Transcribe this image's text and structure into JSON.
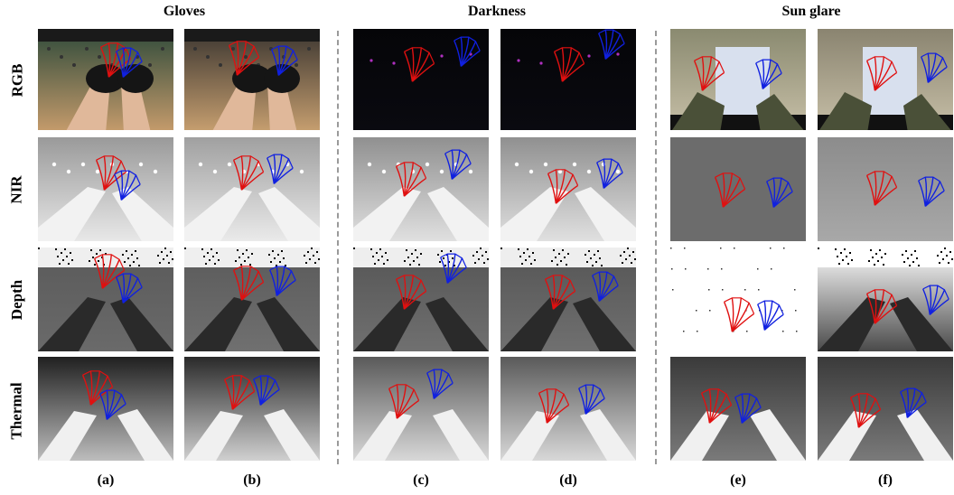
{
  "groups": [
    "Gloves",
    "Darkness",
    "Sun glare"
  ],
  "rows": [
    "RGB",
    "NIR",
    "Depth",
    "Thermal"
  ],
  "columns": [
    "(a)",
    "(b)",
    "(c)",
    "(d)",
    "(e)",
    "(f)"
  ],
  "condition_per_column": [
    "Gloves",
    "Gloves",
    "Darkness",
    "Darkness",
    "Sun glare",
    "Sun glare"
  ],
  "annotation_colors": {
    "left_hand": "#e01010",
    "right_hand": "#1020e0"
  },
  "divider_color": "#9a9a9a"
}
